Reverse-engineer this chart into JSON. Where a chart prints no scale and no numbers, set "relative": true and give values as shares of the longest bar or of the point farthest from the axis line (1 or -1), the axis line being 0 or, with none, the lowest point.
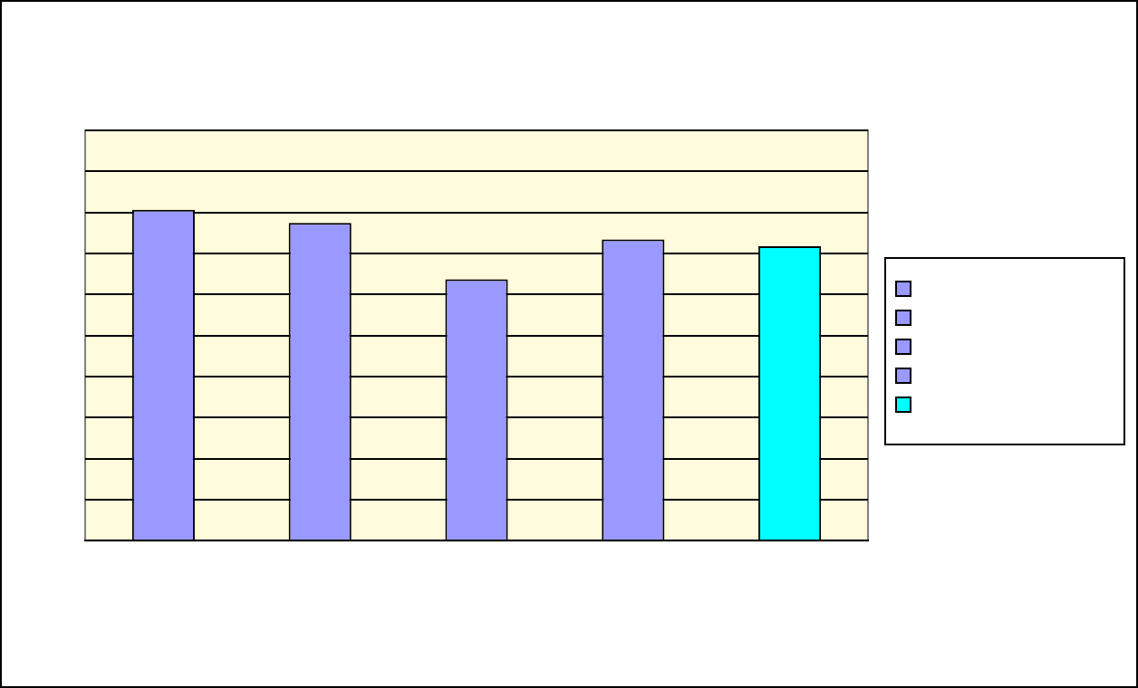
{
  "chart_data": {
    "type": "bar",
    "categories": [
      null,
      null,
      null,
      null,
      null
    ],
    "values": [
      1,
      0.96,
      0.79,
      0.91,
      0.89
    ],
    "colors": [
      "#9999ff",
      "#9999ff",
      "#9999ff",
      "#9999ff",
      "#00ffff"
    ],
    "relative": true,
    "grid": "y"
  }
}
